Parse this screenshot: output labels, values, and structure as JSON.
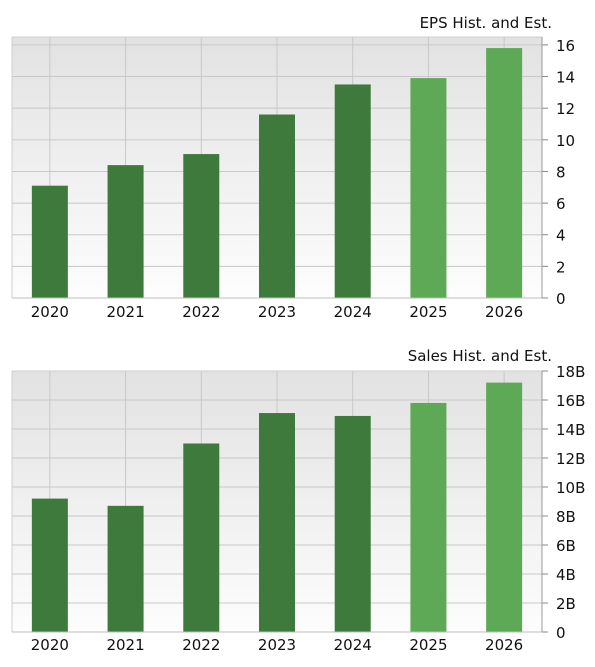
{
  "charts": {
    "eps": {
      "title": "EPS Hist. and Est.",
      "years": [
        "2020",
        "2021",
        "2022",
        "2023",
        "2024",
        "2025",
        "2026"
      ],
      "tick_labels": [
        "0",
        "2",
        "4",
        "6",
        "8",
        "10",
        "12",
        "14",
        "16"
      ]
    },
    "sales": {
      "title": "Sales Hist. and Est.",
      "years": [
        "2020",
        "2021",
        "2022",
        "2023",
        "2024",
        "2025",
        "2026"
      ],
      "tick_labels": [
        "0",
        "2B",
        "4B",
        "6B",
        "8B",
        "10B",
        "12B",
        "14B",
        "16B",
        "18B"
      ]
    }
  },
  "colors": {
    "historical": "#3e7a3c",
    "estimate": "#5ea955",
    "grid": "#c8c8c8",
    "plot_bg_top": "#e2e2e2",
    "plot_bg_bottom": "#fdfdfd"
  },
  "chart_data": [
    {
      "type": "bar",
      "title": "EPS Hist. and Est.",
      "categories": [
        "2020",
        "2021",
        "2022",
        "2023",
        "2024",
        "2025",
        "2026"
      ],
      "values": [
        7.1,
        8.4,
        9.1,
        11.6,
        13.5,
        13.9,
        15.8
      ],
      "estimate_flags": [
        false,
        false,
        false,
        false,
        false,
        true,
        true
      ],
      "ylim": [
        0,
        16.5
      ],
      "yticks": [
        0,
        2,
        4,
        6,
        8,
        10,
        12,
        14,
        16
      ],
      "grid": true,
      "y_axis_position": "right"
    },
    {
      "type": "bar",
      "title": "Sales Hist. and Est.",
      "categories": [
        "2020",
        "2021",
        "2022",
        "2023",
        "2024",
        "2025",
        "2026"
      ],
      "values": [
        9.2,
        8.7,
        13.0,
        15.1,
        14.9,
        15.8,
        17.2
      ],
      "value_unit": "B",
      "estimate_flags": [
        false,
        false,
        false,
        false,
        false,
        true,
        true
      ],
      "ylim": [
        0,
        18
      ],
      "yticks": [
        0,
        2,
        4,
        6,
        8,
        10,
        12,
        14,
        16,
        18
      ],
      "grid": true,
      "y_axis_position": "right"
    }
  ]
}
